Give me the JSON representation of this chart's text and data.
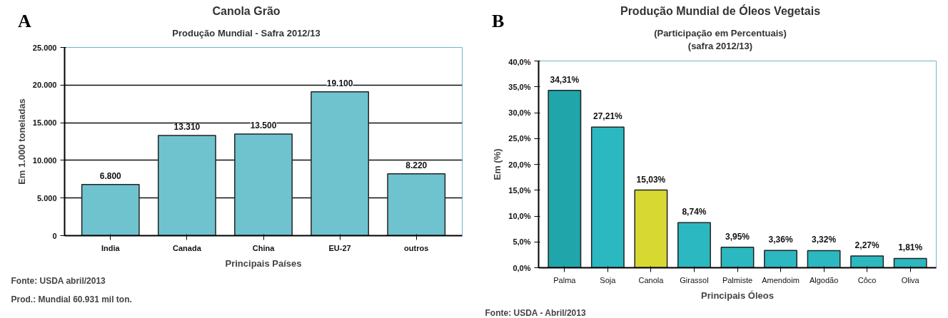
{
  "chart_data": [
    {
      "type": "bar",
      "title": "Canola Grão",
      "subtitle": "Produção Mundial - Safra 2012/13",
      "xlabel": "Principais Países",
      "ylabel": "Em 1.000 toneladas",
      "categories": [
        "India",
        "Canada",
        "China",
        "EU-27",
        "outros"
      ],
      "values": [
        6800,
        13310,
        13500,
        19100,
        8220
      ],
      "value_labels": [
        "6.800",
        "13.310",
        "13.500",
        "19.100",
        "8.220"
      ],
      "color": "#6fc3cf",
      "ylim": [
        0,
        25000
      ],
      "yticks": [
        {
          "value": 0,
          "label": "0"
        },
        {
          "value": 5000,
          "label": "5.000"
        },
        {
          "value": 10000,
          "label": "10.000"
        },
        {
          "value": 15000,
          "label": "15.000"
        },
        {
          "value": 20000,
          "label": "20.000"
        },
        {
          "value": 25000,
          "label": "25.000"
        }
      ],
      "grid": "y",
      "annotations": [
        "A",
        "Fonte: USDA abril/2013",
        "Prod.: Mundial  60.931 mil ton."
      ]
    },
    {
      "type": "bar",
      "title": "Produção Mundial de Óleos Vegetais",
      "subtitle": "(Participação em Percentuais)\n(safra 2012/13)",
      "xlabel": "Principais Óleos",
      "ylabel": "Em (%)",
      "categories": [
        "Palma",
        "Soja",
        "Canola",
        "Girassol",
        "Palmiste",
        "Amendoim",
        "Algodão",
        "Côco",
        "Oliva"
      ],
      "values": [
        34.31,
        27.21,
        15.03,
        8.74,
        3.95,
        3.36,
        3.32,
        2.27,
        1.81
      ],
      "value_labels": [
        "34,31%",
        "27,21%",
        "15,03%",
        "8,74%",
        "3,95%",
        "3,36%",
        "3,32%",
        "2,27%",
        "1,81%"
      ],
      "colors": [
        "#1fa5aa",
        "#2bb8c0",
        "#d8d832",
        "#2bb8c0",
        "#2bb8c0",
        "#2bb8c0",
        "#2bb8c0",
        "#2bb8c0",
        "#2bb8c0"
      ],
      "ylim": [
        0,
        40
      ],
      "yticks": [
        {
          "value": 0,
          "label": "0,0%"
        },
        {
          "value": 5,
          "label": "5,0%"
        },
        {
          "value": 10,
          "label": "10,0%"
        },
        {
          "value": 15,
          "label": "15,0%"
        },
        {
          "value": 20,
          "label": "20,0%"
        },
        {
          "value": 25,
          "label": "25,0%"
        },
        {
          "value": 30,
          "label": "30,0%"
        },
        {
          "value": 35,
          "label": "35,0%"
        },
        {
          "value": 40,
          "label": "40,0%"
        }
      ],
      "annotations": [
        "B",
        "Fonte: USDA - Abril/2013"
      ]
    }
  ]
}
